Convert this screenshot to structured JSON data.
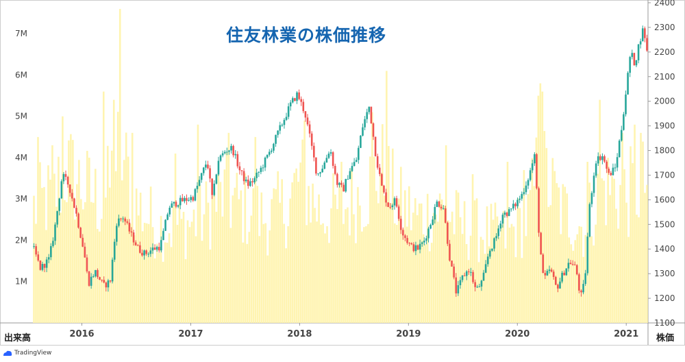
{
  "title": "住友林業の株価推移",
  "left_axis_name": "出来高",
  "right_axis_name": "株価",
  "watermark": "TradingView",
  "colors": {
    "up": "#26a69a",
    "down": "#ef5350",
    "volume": "#fff4b0",
    "title": "#1565b0",
    "grid": "#eeeeee"
  },
  "chart_data": {
    "type": "candlestick+volume",
    "title": "住友林業の株価推移",
    "x_ticks": [
      "2016",
      "2017",
      "2018",
      "2019",
      "2020",
      "2021"
    ],
    "x_range": [
      2015.55,
      2021.2
    ],
    "y_price": {
      "label": "株価",
      "ticks": [
        "1100",
        "1200",
        "1300",
        "1400",
        "1500",
        "1600",
        "1700",
        "1800",
        "1900",
        "2000",
        "2100",
        "2200",
        "2300",
        "2400"
      ],
      "range": [
        1100,
        2400
      ]
    },
    "y_volume": {
      "label": "出来高",
      "ticks": [
        "1M",
        "2M",
        "3M",
        "4M",
        "5M",
        "6M",
        "7M"
      ],
      "range": [
        0,
        7.75
      ]
    },
    "price_path": [
      [
        2015.55,
        1410
      ],
      [
        2015.62,
        1320
      ],
      [
        2015.7,
        1360
      ],
      [
        2015.75,
        1480
      ],
      [
        2015.82,
        1700
      ],
      [
        2015.88,
        1660
      ],
      [
        2015.95,
        1540
      ],
      [
        2016.02,
        1390
      ],
      [
        2016.06,
        1260
      ],
      [
        2016.12,
        1310
      ],
      [
        2016.2,
        1250
      ],
      [
        2016.26,
        1270
      ],
      [
        2016.32,
        1510
      ],
      [
        2016.38,
        1530
      ],
      [
        2016.45,
        1460
      ],
      [
        2016.52,
        1400
      ],
      [
        2016.58,
        1380
      ],
      [
        2016.65,
        1400
      ],
      [
        2016.72,
        1410
      ],
      [
        2016.8,
        1570
      ],
      [
        2016.88,
        1590
      ],
      [
        2016.95,
        1600
      ],
      [
        2017.02,
        1610
      ],
      [
        2017.1,
        1700
      ],
      [
        2017.15,
        1760
      ],
      [
        2017.2,
        1600
      ],
      [
        2017.25,
        1760
      ],
      [
        2017.32,
        1800
      ],
      [
        2017.38,
        1810
      ],
      [
        2017.45,
        1720
      ],
      [
        2017.52,
        1660
      ],
      [
        2017.58,
        1680
      ],
      [
        2017.65,
        1730
      ],
      [
        2017.72,
        1790
      ],
      [
        2017.8,
        1870
      ],
      [
        2017.86,
        1930
      ],
      [
        2017.92,
        1990
      ],
      [
        2017.98,
        2030
      ],
      [
        2018.05,
        1950
      ],
      [
        2018.1,
        1840
      ],
      [
        2018.16,
        1700
      ],
      [
        2018.22,
        1740
      ],
      [
        2018.28,
        1810
      ],
      [
        2018.34,
        1670
      ],
      [
        2018.4,
        1640
      ],
      [
        2018.46,
        1720
      ],
      [
        2018.52,
        1760
      ],
      [
        2018.58,
        1900
      ],
      [
        2018.64,
        1980
      ],
      [
        2018.7,
        1780
      ],
      [
        2018.76,
        1640
      ],
      [
        2018.82,
        1570
      ],
      [
        2018.88,
        1600
      ],
      [
        2018.94,
        1470
      ],
      [
        2019.02,
        1410
      ],
      [
        2019.08,
        1400
      ],
      [
        2019.14,
        1430
      ],
      [
        2019.2,
        1500
      ],
      [
        2019.26,
        1590
      ],
      [
        2019.32,
        1570
      ],
      [
        2019.38,
        1360
      ],
      [
        2019.44,
        1220
      ],
      [
        2019.5,
        1290
      ],
      [
        2019.56,
        1320
      ],
      [
        2019.62,
        1230
      ],
      [
        2019.68,
        1270
      ],
      [
        2019.74,
        1390
      ],
      [
        2019.8,
        1440
      ],
      [
        2019.86,
        1540
      ],
      [
        2019.92,
        1550
      ],
      [
        2019.98,
        1580
      ],
      [
        2020.04,
        1620
      ],
      [
        2020.1,
        1690
      ],
      [
        2020.16,
        1780
      ],
      [
        2020.2,
        1450
      ],
      [
        2020.24,
        1270
      ],
      [
        2020.3,
        1320
      ],
      [
        2020.36,
        1240
      ],
      [
        2020.42,
        1300
      ],
      [
        2020.48,
        1350
      ],
      [
        2020.54,
        1320
      ],
      [
        2020.58,
        1200
      ],
      [
        2020.62,
        1270
      ],
      [
        2020.66,
        1560
      ],
      [
        2020.72,
        1760
      ],
      [
        2020.78,
        1780
      ],
      [
        2020.84,
        1700
      ],
      [
        2020.9,
        1730
      ],
      [
        2020.96,
        1900
      ],
      [
        2021.0,
        2050
      ],
      [
        2021.04,
        2200
      ],
      [
        2021.08,
        2150
      ],
      [
        2021.12,
        2240
      ],
      [
        2021.16,
        2300
      ],
      [
        2021.19,
        2200
      ]
    ],
    "volume_path": [
      [
        2015.55,
        2.5
      ],
      [
        2015.75,
        2.8
      ],
      [
        2015.85,
        3.4
      ],
      [
        2016.0,
        3.0
      ],
      [
        2016.2,
        2.6
      ],
      [
        2016.35,
        3.8
      ],
      [
        2016.5,
        2.6
      ],
      [
        2016.7,
        2.1
      ],
      [
        2016.9,
        2.1
      ],
      [
        2017.1,
        2.3
      ],
      [
        2017.3,
        2.8
      ],
      [
        2017.5,
        2.5
      ],
      [
        2017.7,
        2.3
      ],
      [
        2017.9,
        2.6
      ],
      [
        2018.0,
        3.2
      ],
      [
        2018.2,
        2.4
      ],
      [
        2018.4,
        2.5
      ],
      [
        2018.6,
        2.9
      ],
      [
        2018.75,
        3.4
      ],
      [
        2018.9,
        2.6
      ],
      [
        2019.1,
        2.3
      ],
      [
        2019.3,
        2.5
      ],
      [
        2019.5,
        2.1
      ],
      [
        2019.7,
        2.0
      ],
      [
        2019.9,
        1.9
      ],
      [
        2020.1,
        2.3
      ],
      [
        2020.2,
        3.5
      ],
      [
        2020.4,
        2.5
      ],
      [
        2020.6,
        2.1
      ],
      [
        2020.8,
        3.0
      ],
      [
        2021.0,
        2.8
      ],
      [
        2021.19,
        3.1
      ]
    ],
    "volume_spikes": [
      [
        2015.58,
        4.5
      ],
      [
        2015.72,
        4.3
      ],
      [
        2015.81,
        5.0
      ],
      [
        2016.19,
        5.6
      ],
      [
        2016.29,
        5.4
      ],
      [
        2016.34,
        7.6
      ],
      [
        2016.46,
        4.6
      ],
      [
        2016.85,
        4.1
      ],
      [
        2017.06,
        4.8
      ],
      [
        2017.33,
        4.6
      ],
      [
        2017.58,
        4.5
      ],
      [
        2018.03,
        4.9
      ],
      [
        2018.38,
        3.9
      ],
      [
        2018.66,
        5.1
      ],
      [
        2018.78,
        6.1
      ],
      [
        2019.34,
        4.3
      ],
      [
        2019.58,
        3.6
      ],
      [
        2019.9,
        3.9
      ],
      [
        2020.05,
        3.7
      ],
      [
        2020.18,
        5.5
      ],
      [
        2020.2,
        5.8
      ],
      [
        2020.22,
        5.6
      ],
      [
        2020.63,
        3.9
      ],
      [
        2020.74,
        5.4
      ],
      [
        2020.96,
        4.6
      ],
      [
        2021.06,
        4.8
      ],
      [
        2021.12,
        4.6
      ]
    ]
  }
}
